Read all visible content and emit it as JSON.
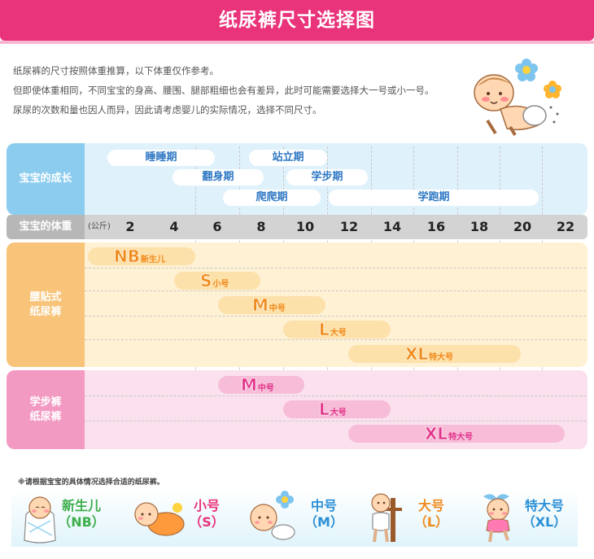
{
  "header": {
    "title": "纸尿裤尺寸选择图"
  },
  "intro": [
    "纸尿裤的尺寸按照体重推算，以下体重仅作参考。",
    "但即使体重相同，不同宝宝的身高、腰围、腿部粗细也会有差异，此时可能需要选择大一号或小一号。",
    "尿尿的次数和量也因人而异，因此请考虑婴儿的实际情况，选择不同尺寸。"
  ],
  "growth": {
    "header": "宝宝的成长",
    "stages": [
      "睡睡期",
      "站立期",
      "翻身期",
      "学步期",
      "爬爬期",
      "学跑期"
    ]
  },
  "weight": {
    "header": "宝宝的体重",
    "unit": "(公斤)",
    "ticks": [
      "2",
      "4",
      "6",
      "8",
      "10",
      "12",
      "14",
      "16",
      "18",
      "20",
      "22"
    ]
  },
  "tape": {
    "header_line1": "腰贴式",
    "header_line2": "纸尿裤",
    "sizes": [
      {
        "size": "NB",
        "label": "新生儿"
      },
      {
        "size": "S",
        "label": "小号"
      },
      {
        "size": "M",
        "label": "中号"
      },
      {
        "size": "L",
        "label": "大号"
      },
      {
        "size": "XL",
        "label": "特大号"
      }
    ]
  },
  "pants": {
    "header_line1": "学步裤",
    "header_line2": "纸尿裤",
    "sizes": [
      {
        "size": "M",
        "label": "中号"
      },
      {
        "size": "L",
        "label": "大号"
      },
      {
        "size": "XL",
        "label": "特大号"
      }
    ]
  },
  "footnote": "※请根据宝宝的具体情况选择合适的纸尿裤。",
  "bottom": [
    {
      "name": "新生儿",
      "code": "（NB）",
      "color": "#3dae4a"
    },
    {
      "name": "小号",
      "code": "（S）",
      "color": "#e8337b"
    },
    {
      "name": "中号",
      "code": "（M）",
      "color": "#2a8fd6"
    },
    {
      "name": "大号",
      "code": "（L）",
      "color": "#ef8a1d"
    },
    {
      "name": "特大号",
      "code": "（XL）",
      "color": "#2a8fd6"
    }
  ],
  "colors": {
    "header": "#e9337b",
    "growth": "#8ccdef",
    "tape": "#f7c47a",
    "pants": "#f39ac3",
    "tape_text": "#f08a1c",
    "pants_text": "#e2338a"
  },
  "icons": [
    "baby-with-flowers-illustration",
    "newborn-baby-icon",
    "crawling-baby-icon",
    "sitting-baby-icon",
    "standing-baby-icon",
    "walking-baby-icon"
  ]
}
